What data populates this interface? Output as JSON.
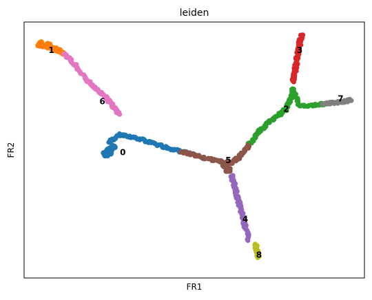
{
  "chart_data": {
    "type": "scatter",
    "title": "leiden",
    "xlabel": "FR1",
    "ylabel": "FR2",
    "xlim": [
      0,
      100
    ],
    "ylim": [
      0,
      100
    ],
    "grid": false,
    "legend": "on data",
    "clusters": [
      {
        "name": "0",
        "color": "#1f77b4",
        "label_pos": [
          29,
          49
        ],
        "path": [
          [
            25,
            53
          ],
          [
            28,
            56
          ],
          [
            32,
            55
          ],
          [
            37,
            53
          ],
          [
            42,
            51
          ],
          [
            46,
            49.5
          ],
          [
            50,
            48
          ]
        ],
        "blob": [
          [
            26,
            51
          ],
          [
            25,
            50
          ],
          [
            25,
            49
          ],
          [
            24,
            48.5
          ]
        ]
      },
      {
        "name": "1",
        "color": "#ff7f0e",
        "label_pos": [
          8,
          89
        ],
        "path": [
          [
            4,
            91
          ],
          [
            6,
            90.5
          ],
          [
            8,
            90
          ],
          [
            10,
            89
          ],
          [
            12,
            87.5
          ]
        ],
        "blob": [
          [
            5,
            91.5
          ],
          [
            7,
            91
          ],
          [
            9,
            89.5
          ]
        ]
      },
      {
        "name": "2",
        "color": "#2ca02c",
        "label_pos": [
          77,
          66
        ],
        "path": [
          [
            66,
            52
          ],
          [
            69,
            57
          ],
          [
            72,
            61
          ],
          [
            75,
            64
          ],
          [
            77,
            66
          ],
          [
            78,
            69
          ],
          [
            79,
            72
          ],
          [
            79,
            74
          ],
          [
            81,
            67
          ],
          [
            85,
            67.5
          ],
          [
            88,
            68
          ]
        ],
        "blob": []
      },
      {
        "name": "3",
        "color": "#d62728",
        "label_pos": [
          81,
          89
        ],
        "path": [
          [
            79,
            77
          ],
          [
            79.5,
            80
          ],
          [
            80,
            84
          ],
          [
            80.5,
            88
          ],
          [
            81,
            92
          ],
          [
            81.5,
            95
          ]
        ],
        "blob": []
      },
      {
        "name": "4",
        "color": "#9467bd",
        "label_pos": [
          65,
          23
        ],
        "path": [
          [
            61,
            40
          ],
          [
            62,
            35
          ],
          [
            63,
            30
          ],
          [
            64,
            25
          ],
          [
            65,
            20
          ],
          [
            66,
            15
          ]
        ],
        "blob": []
      },
      {
        "name": "5",
        "color": "#8c564b",
        "label_pos": [
          60,
          46
        ],
        "path": [
          [
            46,
            49.5
          ],
          [
            50,
            48
          ],
          [
            54,
            46.5
          ],
          [
            58,
            45.5
          ],
          [
            61,
            45
          ],
          [
            63,
            47
          ],
          [
            65,
            50
          ],
          [
            66,
            52
          ]
        ],
        "blob": [
          [
            59,
            44
          ],
          [
            60,
            42
          ]
        ]
      },
      {
        "name": "6",
        "color": "#e377c2",
        "label_pos": [
          23,
          69
        ],
        "path": [
          [
            12,
            87.5
          ],
          [
            15,
            83
          ],
          [
            18,
            78
          ],
          [
            21,
            74
          ],
          [
            24,
            71
          ],
          [
            26,
            67
          ],
          [
            28,
            64
          ]
        ],
        "blob": []
      },
      {
        "name": "7",
        "color": "#7f7f7f",
        "label_pos": [
          93,
          70
        ],
        "path": [
          [
            88,
            68
          ],
          [
            91,
            68.5
          ],
          [
            94,
            69
          ],
          [
            96,
            69.5
          ]
        ],
        "blob": []
      },
      {
        "name": "8",
        "color": "#bcbd22",
        "label_pos": [
          69,
          9
        ],
        "path": [
          [
            68,
            13
          ],
          [
            68.5,
            10
          ],
          [
            69,
            8
          ]
        ],
        "blob": []
      }
    ]
  }
}
